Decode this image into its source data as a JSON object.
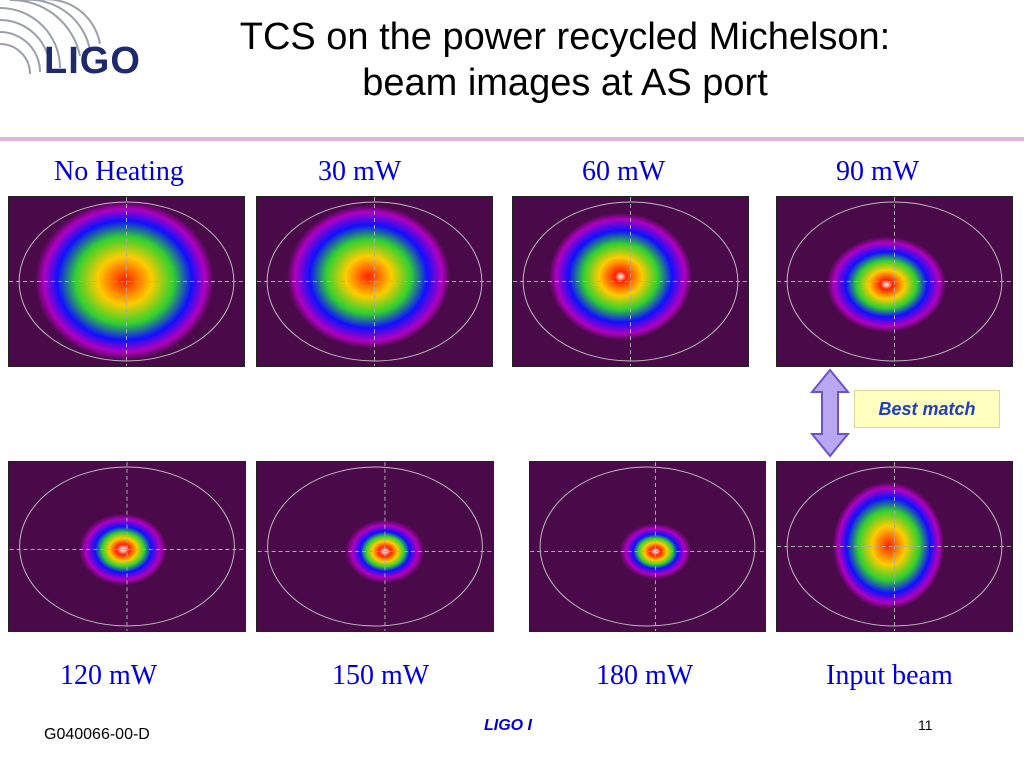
{
  "slide": {
    "logo_text": "LIGO",
    "title_line1": "TCS on the power recycled Michelson:",
    "title_line2": "beam images at AS port",
    "labels_top": [
      "No Heating",
      "30 mW",
      "60 mW",
      "90 mW"
    ],
    "labels_bottom": [
      "120 mW",
      "150 mW",
      "180 mW",
      "Input beam"
    ],
    "callout": "Best match",
    "footer_left": "G040066-00-D",
    "footer_center": "LIGO I",
    "page_number": "11"
  },
  "colors": {
    "label_blue": "#0000dd",
    "rule_pink": "#e8b4d8",
    "callout_bg": "#ffffc0",
    "arrow_fill": "#b9a7f2",
    "beam_background": "#4a0a4a"
  }
}
